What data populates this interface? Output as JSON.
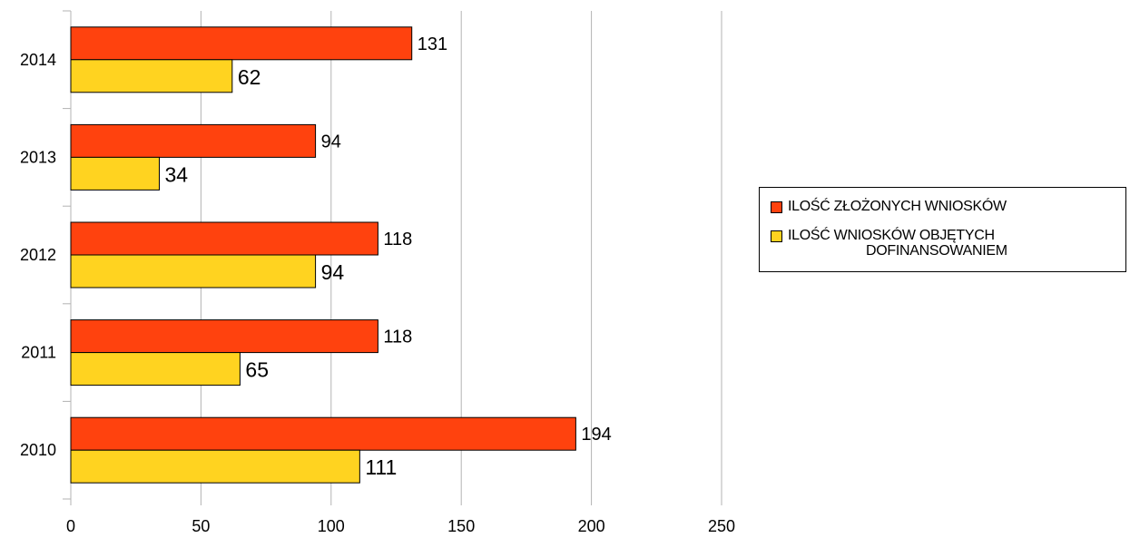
{
  "chart_data": {
    "type": "bar",
    "orientation": "horizontal",
    "categories": [
      "2014",
      "2013",
      "2012",
      "2011",
      "2010"
    ],
    "series": [
      {
        "name": "ILOŚĆ ZŁOŻONYCH WNIOSKÓW",
        "color": "#ff420e",
        "values": [
          131,
          94,
          118,
          118,
          194
        ]
      },
      {
        "name": "ILOŚĆ WNIOSKÓW OBJĘTYCH DOFINANSOWANIEM",
        "color": "#ffd320",
        "values": [
          62,
          34,
          94,
          65,
          111
        ]
      }
    ],
    "xticks": [
      "0",
      "50",
      "100",
      "150",
      "200",
      "250"
    ],
    "xlim": [
      0,
      250
    ],
    "grid": "vertical",
    "legend_position": "right",
    "title": "",
    "xlabel": "",
    "ylabel": ""
  },
  "legend": {
    "items": [
      {
        "label": "ILOŚĆ ZŁOŻONYCH WNIOSKÓW",
        "color": "#ff420e"
      },
      {
        "label": "ILOŚĆ  WNIOSKÓW       OBJĘTYCH\nDOFINANSOWANIEM",
        "color": "#ffd320"
      }
    ]
  }
}
